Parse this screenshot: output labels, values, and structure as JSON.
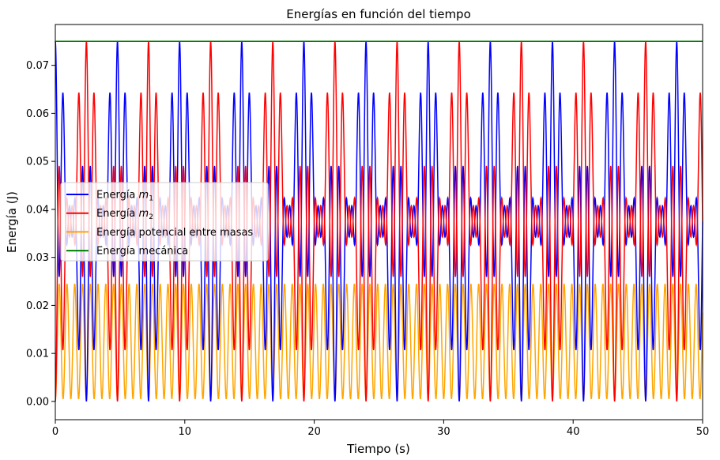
{
  "chart_data": {
    "type": "line",
    "title": "Energías en función del tiempo",
    "xlabel": "Tiempo (s)",
    "ylabel": "Energía (J)",
    "xlim": [
      0,
      50
    ],
    "ylim": [
      -0.0038,
      0.0785
    ],
    "xticks": [
      0,
      10,
      20,
      30,
      40,
      50
    ],
    "xtick_labels": [
      "0",
      "10",
      "20",
      "30",
      "40",
      "50"
    ],
    "yticks": [
      0.0,
      0.01,
      0.02,
      0.03,
      0.04,
      0.05,
      0.06,
      0.07
    ],
    "ytick_labels": [
      "0.00",
      "0.01",
      "0.02",
      "0.03",
      "0.04",
      "0.05",
      "0.06",
      "0.07"
    ],
    "grid": false,
    "legend_position": "center-left",
    "series": [
      {
        "name": "Energía m1",
        "label_main": "Energía ",
        "label_sub_var": "m",
        "label_sub": "1",
        "color": "#0000ff",
        "model": {
          "base": 0.0375,
          "fast_amp": 0.025,
          "fast_period": 0.6,
          "slow_amp": 0.0125,
          "slow_period": 4.8,
          "phase": 0
        }
      },
      {
        "name": "Energía m2",
        "label_main": "Energía ",
        "label_sub_var": "m",
        "label_sub": "2",
        "color": "#ff0000",
        "model": {
          "base": 0.0375,
          "fast_amp": -0.025,
          "fast_period": 0.6,
          "slow_amp": -0.0125,
          "slow_period": 4.8,
          "phase": 0
        }
      },
      {
        "name": "Energía potencial entre masas",
        "label_main": "Energía potencial entre masas",
        "color": "#ffa500",
        "model": {
          "center": 0.0125,
          "amp": 0.012,
          "period": 0.6
        }
      },
      {
        "name": "Energía mecánica",
        "label_main": "Energía mecánica",
        "color": "#008000",
        "constant": 0.075
      }
    ]
  }
}
